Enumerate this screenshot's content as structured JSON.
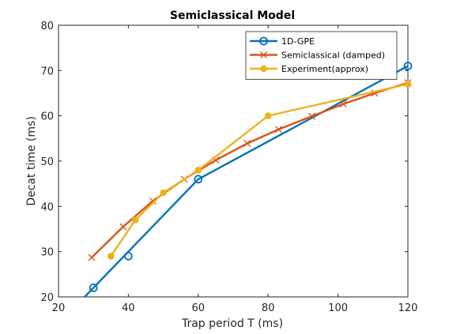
{
  "chart_data": {
    "type": "line",
    "title": "Semiclassical Model",
    "xlabel": "Trap period T (ms)",
    "ylabel": "Decat time (ms)",
    "xlim": [
      20,
      120
    ],
    "ylim": [
      20,
      80
    ],
    "xticks": [
      20,
      40,
      60,
      80,
      100,
      120
    ],
    "yticks": [
      20,
      30,
      40,
      50,
      60,
      70,
      80
    ],
    "grid": false,
    "legend_position": "top-right",
    "series": [
      {
        "name": "1D-GPE",
        "color": "#0072BD",
        "marker": "circle-open",
        "line_x": [
          27.5,
          60,
          120
        ],
        "line_y": [
          20,
          46,
          71
        ],
        "marker_x": [
          30,
          40,
          60,
          120
        ],
        "marker_y": [
          22,
          29,
          46,
          71
        ]
      },
      {
        "name": "Semiclassical (damped)",
        "color": "#D95319",
        "marker": "x",
        "x": [
          29.5,
          38.5,
          47,
          56,
          65,
          74,
          83,
          92.5,
          101.5,
          110.5,
          120
        ],
        "y": [
          28.7,
          35.5,
          41.2,
          46,
          50.2,
          53.9,
          57,
          59.9,
          62.6,
          65,
          67.3
        ]
      },
      {
        "name": "Experiment(approx)",
        "color": "#EDB120",
        "marker": "dot",
        "x": [
          35,
          42,
          50,
          60,
          80,
          120
        ],
        "y": [
          29,
          37,
          43,
          48,
          60,
          67
        ]
      }
    ]
  }
}
